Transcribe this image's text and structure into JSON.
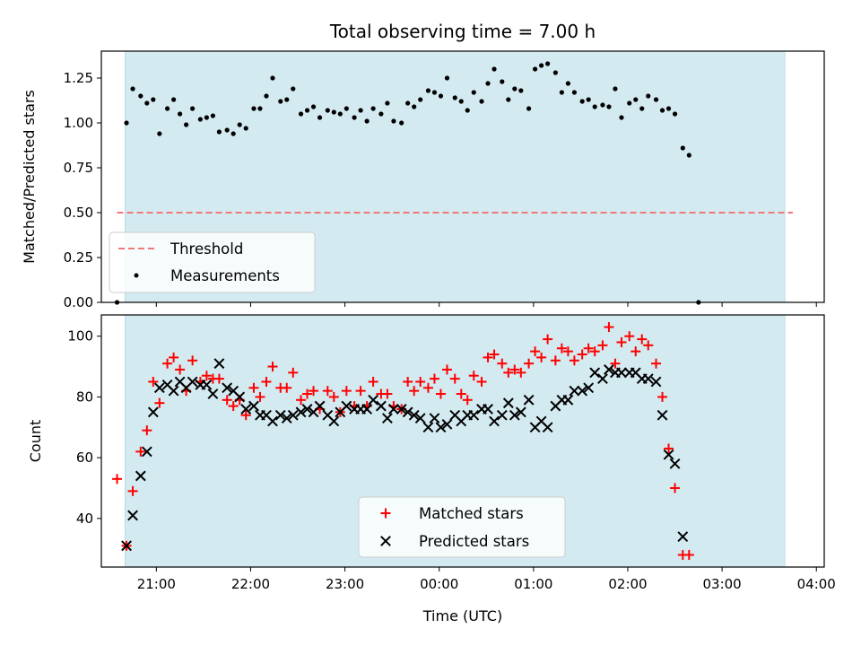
{
  "title": "Total observing time = 7.00 h",
  "colors": {
    "shade": "#d3eaf1",
    "threshold": "#f07878",
    "measurement": "#000000",
    "matched": "#ff0000",
    "predicted": "#000000"
  },
  "chart_data": [
    {
      "type": "scatter",
      "title": "Total observing time = 7.00 h",
      "xlabel": "",
      "ylabel": "Matched/Predicted stars",
      "ylim": [
        0,
        1.4
      ],
      "yticks": [
        "0.00",
        "0.25",
        "0.50",
        "0.75",
        "1.00",
        "1.25"
      ],
      "ytick_values": [
        0,
        0.25,
        0.5,
        0.75,
        1.0,
        1.25
      ],
      "shaded_region": {
        "x_start": "20:40",
        "x_end": "03:40"
      },
      "legend_position": "lower-left",
      "threshold": {
        "name": "Threshold",
        "value": 0.5,
        "x_start": "20:35",
        "x_end": "03:45"
      },
      "measurements": {
        "name": "Measurements",
        "points": [
          [
            "20:35",
            0.0
          ],
          [
            "20:41",
            1.0
          ],
          [
            "20:45",
            1.19
          ],
          [
            "20:50",
            1.15
          ],
          [
            "20:54",
            1.11
          ],
          [
            "20:58",
            1.13
          ],
          [
            "21:02",
            0.94
          ],
          [
            "21:07",
            1.08
          ],
          [
            "21:11",
            1.13
          ],
          [
            "21:15",
            1.05
          ],
          [
            "21:19",
            0.99
          ],
          [
            "21:23",
            1.08
          ],
          [
            "21:28",
            1.02
          ],
          [
            "21:32",
            1.03
          ],
          [
            "21:36",
            1.04
          ],
          [
            "21:40",
            0.95
          ],
          [
            "21:45",
            0.96
          ],
          [
            "21:49",
            0.94
          ],
          [
            "21:53",
            0.99
          ],
          [
            "21:57",
            0.97
          ],
          [
            "22:02",
            1.08
          ],
          [
            "22:06",
            1.08
          ],
          [
            "22:10",
            1.15
          ],
          [
            "22:14",
            1.25
          ],
          [
            "22:19",
            1.12
          ],
          [
            "22:23",
            1.13
          ],
          [
            "22:27",
            1.19
          ],
          [
            "22:32",
            1.05
          ],
          [
            "22:36",
            1.07
          ],
          [
            "22:40",
            1.09
          ],
          [
            "22:44",
            1.03
          ],
          [
            "22:49",
            1.07
          ],
          [
            "22:53",
            1.06
          ],
          [
            "22:57",
            1.05
          ],
          [
            "23:01",
            1.08
          ],
          [
            "23:06",
            1.03
          ],
          [
            "23:10",
            1.07
          ],
          [
            "23:14",
            1.01
          ],
          [
            "23:18",
            1.08
          ],
          [
            "23:23",
            1.05
          ],
          [
            "23:27",
            1.11
          ],
          [
            "23:31",
            1.01
          ],
          [
            "23:36",
            1.0
          ],
          [
            "23:40",
            1.11
          ],
          [
            "23:44",
            1.09
          ],
          [
            "23:48",
            1.13
          ],
          [
            "23:53",
            1.18
          ],
          [
            "23:57",
            1.17
          ],
          [
            "00:01",
            1.15
          ],
          [
            "00:05",
            1.25
          ],
          [
            "00:10",
            1.14
          ],
          [
            "00:14",
            1.12
          ],
          [
            "00:18",
            1.07
          ],
          [
            "00:22",
            1.17
          ],
          [
            "00:27",
            1.12
          ],
          [
            "00:31",
            1.22
          ],
          [
            "00:35",
            1.3
          ],
          [
            "00:40",
            1.23
          ],
          [
            "00:44",
            1.13
          ],
          [
            "00:48",
            1.19
          ],
          [
            "00:52",
            1.18
          ],
          [
            "00:57",
            1.08
          ],
          [
            "01:01",
            1.3
          ],
          [
            "01:05",
            1.32
          ],
          [
            "01:09",
            1.33
          ],
          [
            "01:14",
            1.28
          ],
          [
            "01:18",
            1.17
          ],
          [
            "01:22",
            1.22
          ],
          [
            "01:26",
            1.17
          ],
          [
            "01:31",
            1.12
          ],
          [
            "01:35",
            1.13
          ],
          [
            "01:39",
            1.09
          ],
          [
            "01:44",
            1.1
          ],
          [
            "01:48",
            1.09
          ],
          [
            "01:52",
            1.19
          ],
          [
            "01:56",
            1.03
          ],
          [
            "02:01",
            1.11
          ],
          [
            "02:05",
            1.13
          ],
          [
            "02:09",
            1.08
          ],
          [
            "02:13",
            1.15
          ],
          [
            "02:18",
            1.13
          ],
          [
            "02:22",
            1.07
          ],
          [
            "02:26",
            1.08
          ],
          [
            "02:30",
            1.05
          ],
          [
            "02:35",
            0.86
          ],
          [
            "02:39",
            0.82
          ],
          [
            "02:45",
            0.0
          ]
        ]
      }
    },
    {
      "type": "scatter",
      "xlabel": "Time (UTC)",
      "ylabel": "Count",
      "ylim": [
        24,
        107
      ],
      "yticks": [
        "40",
        "60",
        "80",
        "100"
      ],
      "ytick_values": [
        40,
        60,
        80,
        100
      ],
      "xticks": [
        "21:00",
        "22:00",
        "23:00",
        "00:00",
        "01:00",
        "02:00",
        "03:00",
        "04:00"
      ],
      "xlim": [
        "20:25",
        "04:05"
      ],
      "shaded_region": {
        "x_start": "20:40",
        "x_end": "03:40"
      },
      "legend_position": "lower-center",
      "series": [
        {
          "name": "Matched stars",
          "marker": "+",
          "points": [
            [
              "20:35",
              53
            ],
            [
              "20:41",
              31
            ],
            [
              "20:45",
              49
            ],
            [
              "20:50",
              62
            ],
            [
              "20:54",
              69
            ],
            [
              "20:58",
              85
            ],
            [
              "21:02",
              78
            ],
            [
              "21:07",
              91
            ],
            [
              "21:11",
              93
            ],
            [
              "21:15",
              89
            ],
            [
              "21:19",
              82
            ],
            [
              "21:23",
              92
            ],
            [
              "21:28",
              85
            ],
            [
              "21:32",
              87
            ],
            [
              "21:36",
              86
            ],
            [
              "21:40",
              86
            ],
            [
              "21:45",
              79
            ],
            [
              "21:49",
              77
            ],
            [
              "21:53",
              79
            ],
            [
              "21:57",
              74
            ],
            [
              "22:02",
              83
            ],
            [
              "22:06",
              80
            ],
            [
              "22:10",
              85
            ],
            [
              "22:14",
              90
            ],
            [
              "22:19",
              83
            ],
            [
              "22:23",
              83
            ],
            [
              "22:27",
              88
            ],
            [
              "22:32",
              79
            ],
            [
              "22:36",
              81
            ],
            [
              "22:40",
              82
            ],
            [
              "22:44",
              76
            ],
            [
              "22:49",
              82
            ],
            [
              "22:53",
              80
            ],
            [
              "22:57",
              75
            ],
            [
              "23:01",
              82
            ],
            [
              "23:06",
              77
            ],
            [
              "23:10",
              82
            ],
            [
              "23:14",
              77
            ],
            [
              "23:18",
              85
            ],
            [
              "23:23",
              81
            ],
            [
              "23:27",
              81
            ],
            [
              "23:31",
              77
            ],
            [
              "23:36",
              76
            ],
            [
              "23:40",
              85
            ],
            [
              "23:44",
              82
            ],
            [
              "23:48",
              85
            ],
            [
              "23:53",
              83
            ],
            [
              "23:57",
              86
            ],
            [
              "00:01",
              81
            ],
            [
              "00:05",
              89
            ],
            [
              "00:10",
              86
            ],
            [
              "00:14",
              81
            ],
            [
              "00:18",
              79
            ],
            [
              "00:22",
              87
            ],
            [
              "00:27",
              85
            ],
            [
              "00:31",
              93
            ],
            [
              "00:35",
              94
            ],
            [
              "00:40",
              91
            ],
            [
              "00:44",
              88
            ],
            [
              "00:48",
              89
            ],
            [
              "00:52",
              88
            ],
            [
              "00:57",
              91
            ],
            [
              "01:01",
              95
            ],
            [
              "01:05",
              93
            ],
            [
              "01:09",
              99
            ],
            [
              "01:14",
              92
            ],
            [
              "01:18",
              96
            ],
            [
              "01:22",
              95
            ],
            [
              "01:26",
              92
            ],
            [
              "01:31",
              94
            ],
            [
              "01:35",
              96
            ],
            [
              "01:39",
              95
            ],
            [
              "01:44",
              97
            ],
            [
              "01:48",
              103
            ],
            [
              "01:52",
              91
            ],
            [
              "01:56",
              98
            ],
            [
              "02:01",
              100
            ],
            [
              "02:05",
              95
            ],
            [
              "02:09",
              99
            ],
            [
              "02:13",
              97
            ],
            [
              "02:18",
              91
            ],
            [
              "02:22",
              80
            ],
            [
              "02:26",
              63
            ],
            [
              "02:30",
              50
            ],
            [
              "02:35",
              28
            ],
            [
              "02:39",
              28
            ]
          ]
        },
        {
          "name": "Predicted stars",
          "marker": "x",
          "points": [
            [
              "20:41",
              31
            ],
            [
              "20:45",
              41
            ],
            [
              "20:50",
              54
            ],
            [
              "20:54",
              62
            ],
            [
              "20:58",
              75
            ],
            [
              "21:02",
              83
            ],
            [
              "21:07",
              84
            ],
            [
              "21:11",
              82
            ],
            [
              "21:15",
              85
            ],
            [
              "21:19",
              83
            ],
            [
              "21:23",
              85
            ],
            [
              "21:28",
              84
            ],
            [
              "21:32",
              84
            ],
            [
              "21:36",
              81
            ],
            [
              "21:40",
              91
            ],
            [
              "21:45",
              83
            ],
            [
              "21:49",
              82
            ],
            [
              "21:53",
              80
            ],
            [
              "21:57",
              76
            ],
            [
              "22:02",
              77
            ],
            [
              "22:06",
              74
            ],
            [
              "22:10",
              74
            ],
            [
              "22:14",
              72
            ],
            [
              "22:19",
              74
            ],
            [
              "22:23",
              73
            ],
            [
              "22:27",
              74
            ],
            [
              "22:32",
              75
            ],
            [
              "22:36",
              76
            ],
            [
              "22:40",
              75
            ],
            [
              "22:44",
              77
            ],
            [
              "22:49",
              74
            ],
            [
              "22:53",
              72
            ],
            [
              "22:57",
              75
            ],
            [
              "23:01",
              77
            ],
            [
              "23:06",
              76
            ],
            [
              "23:10",
              76
            ],
            [
              "23:14",
              76
            ],
            [
              "23:18",
              79
            ],
            [
              "23:23",
              77
            ],
            [
              "23:27",
              73
            ],
            [
              "23:31",
              76
            ],
            [
              "23:36",
              76
            ],
            [
              "23:40",
              75
            ],
            [
              "23:44",
              74
            ],
            [
              "23:48",
              73
            ],
            [
              "23:53",
              70
            ],
            [
              "23:57",
              73
            ],
            [
              "00:01",
              70
            ],
            [
              "00:05",
              71
            ],
            [
              "00:10",
              74
            ],
            [
              "00:14",
              72
            ],
            [
              "00:18",
              74
            ],
            [
              "00:22",
              74
            ],
            [
              "00:27",
              76
            ],
            [
              "00:31",
              76
            ],
            [
              "00:35",
              72
            ],
            [
              "00:40",
              74
            ],
            [
              "00:44",
              78
            ],
            [
              "00:48",
              74
            ],
            [
              "00:52",
              75
            ],
            [
              "00:57",
              79
            ],
            [
              "01:01",
              70
            ],
            [
              "01:05",
              72
            ],
            [
              "01:09",
              70
            ],
            [
              "01:14",
              77
            ],
            [
              "01:18",
              79
            ],
            [
              "01:22",
              79
            ],
            [
              "01:26",
              82
            ],
            [
              "01:31",
              82
            ],
            [
              "01:35",
              83
            ],
            [
              "01:39",
              88
            ],
            [
              "01:44",
              86
            ],
            [
              "01:48",
              89
            ],
            [
              "01:52",
              88
            ],
            [
              "01:56",
              88
            ],
            [
              "02:01",
              88
            ],
            [
              "02:05",
              88
            ],
            [
              "02:09",
              86
            ],
            [
              "02:13",
              86
            ],
            [
              "02:18",
              85
            ],
            [
              "02:22",
              74
            ],
            [
              "02:26",
              61
            ],
            [
              "02:30",
              58
            ],
            [
              "02:35",
              34
            ]
          ]
        }
      ]
    }
  ]
}
